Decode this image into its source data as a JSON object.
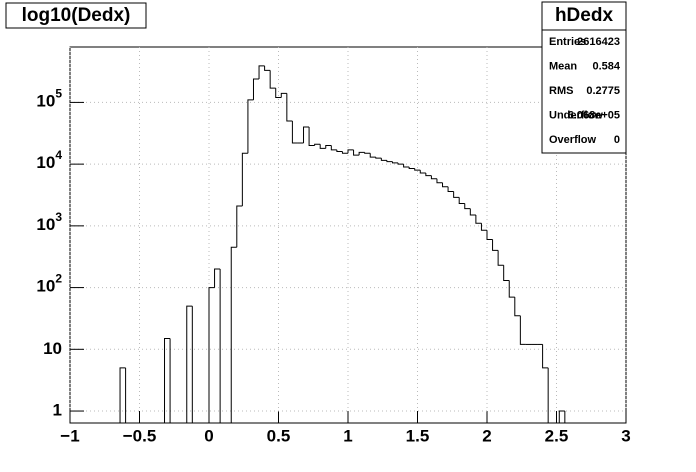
{
  "chart_data": {
    "type": "histogram",
    "title": "log10(Dedx)",
    "stats_title": "hDedx",
    "stats": [
      {
        "label": "Entries",
        "value": "2616423"
      },
      {
        "label": "Mean",
        "value": "0.584"
      },
      {
        "label": "RMS",
        "value": "0.2775"
      },
      {
        "label": "Underflow",
        "value": "6.068e+05"
      },
      {
        "label": "Overflow",
        "value": "0"
      }
    ],
    "bins": [
      -1,
      -0.96,
      -0.92,
      -0.88,
      -0.84,
      -0.8,
      -0.76,
      -0.72,
      -0.68,
      -0.64,
      -0.6,
      -0.56,
      -0.52,
      -0.48,
      -0.44,
      -0.4,
      -0.36,
      -0.32,
      -0.28,
      -0.24,
      -0.2,
      -0.16,
      -0.12,
      -0.08,
      -0.04,
      0,
      0.04,
      0.08,
      0.12,
      0.16,
      0.2,
      0.24,
      0.28,
      0.32,
      0.36,
      0.4,
      0.44,
      0.48,
      0.52,
      0.56,
      0.6,
      0.64,
      0.68,
      0.72,
      0.76,
      0.8,
      0.84,
      0.88,
      0.92,
      0.96,
      1,
      1.04,
      1.08,
      1.12,
      1.16,
      1.2,
      1.24,
      1.28,
      1.32,
      1.36,
      1.4,
      1.44,
      1.48,
      1.52,
      1.56,
      1.6,
      1.64,
      1.68,
      1.72,
      1.76,
      1.8,
      1.84,
      1.88,
      1.92,
      1.96,
      2,
      2.04,
      2.08,
      2.12,
      2.16,
      2.2,
      2.24,
      2.28,
      2.32,
      2.36,
      2.4,
      2.44,
      2.48,
      2.52,
      2.56,
      2.6,
      2.64,
      2.68,
      2.72,
      2.76,
      2.8,
      2.84,
      2.88,
      2.92,
      2.96,
      3
    ],
    "values": [
      0,
      0,
      0,
      0,
      0,
      0,
      0,
      0,
      0,
      5,
      0,
      0,
      0,
      0,
      0,
      0,
      0,
      15,
      0,
      0,
      0,
      50,
      0,
      0,
      0,
      100,
      200,
      0,
      0,
      450,
      2100,
      15000,
      110000,
      240000,
      390000,
      330000,
      170000,
      120000,
      140000,
      50000,
      22000,
      22000,
      40000,
      20000,
      21000,
      18000,
      20000,
      17000,
      16000,
      15000,
      17000,
      14000,
      15500,
      15000,
      13000,
      12500,
      11500,
      11000,
      10500,
      10000,
      9000,
      8500,
      8000,
      7200,
      6500,
      5800,
      5000,
      4300,
      3600,
      2900,
      2300,
      1900,
      1500,
      1100,
      850,
      600,
      400,
      230,
      130,
      70,
      35,
      12,
      12,
      12,
      12,
      5,
      0,
      0,
      1,
      0,
      0,
      0,
      0,
      0,
      0,
      0,
      0,
      0,
      0,
      0,
      0
    ],
    "color": "#000000",
    "xlim": [
      -1,
      3
    ],
    "xticks": [
      {
        "value": -1,
        "label": "−1"
      },
      {
        "value": -0.5,
        "label": "−0.5"
      },
      0,
      0.5,
      1,
      1.5,
      2,
      2.5,
      3
    ],
    "ylim": [
      0.64,
      790000
    ],
    "log_y": true,
    "yticks": [
      1,
      10,
      {
        "value": 100,
        "label": "10",
        "exp": "2"
      },
      {
        "value": 1000,
        "label": "10",
        "exp": "3"
      },
      {
        "value": 10000,
        "label": "10",
        "exp": "4"
      },
      {
        "value": 100000,
        "label": "10",
        "exp": "5"
      }
    ],
    "grid": true
  }
}
